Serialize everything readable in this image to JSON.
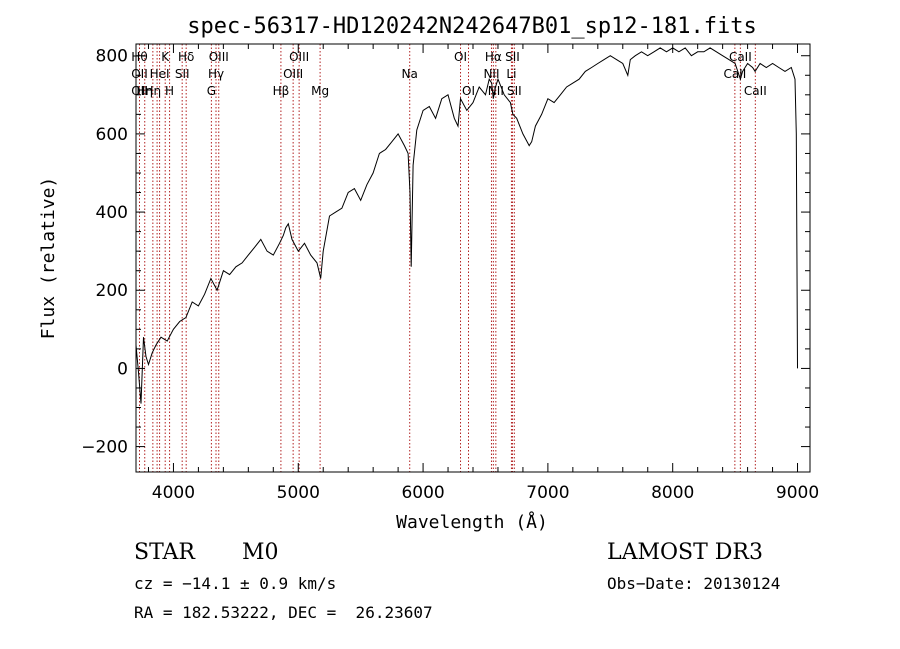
{
  "chart_data": {
    "type": "line",
    "title": "spec-56317-HD120242N242647B01_sp12-181.fits",
    "xlabel": "Wavelength (Å)",
    "ylabel": "Flux (relative)",
    "xlim": [
      3700,
      9100
    ],
    "ylim": [
      -265,
      830
    ],
    "xticks": [
      4000,
      5000,
      6000,
      7000,
      8000,
      9000
    ],
    "yticks": [
      -200,
      0,
      200,
      400,
      600,
      800
    ],
    "grid": false,
    "line_color": "#000000",
    "marker_color": "#b22222",
    "series": [
      {
        "x": [
          3700,
          3720,
          3740,
          3760,
          3780,
          3800,
          3830,
          3860,
          3900,
          3950,
          4000,
          4050,
          4100,
          4150,
          4200,
          4250,
          4300,
          4350,
          4400,
          4450,
          4500,
          4550,
          4600,
          4650,
          4700,
          4750,
          4800,
          4850,
          4880,
          4900,
          4920,
          4950,
          5000,
          5050,
          5100,
          5150,
          5180,
          5200,
          5250,
          5300,
          5350,
          5400,
          5450,
          5500,
          5550,
          5600,
          5650,
          5700,
          5750,
          5800,
          5850,
          5880,
          5895,
          5905,
          5920,
          5950,
          6000,
          6050,
          6100,
          6150,
          6200,
          6250,
          6280,
          6300,
          6350,
          6400,
          6450,
          6500,
          6530,
          6550,
          6563,
          6580,
          6600,
          6650,
          6700,
          6720,
          6750,
          6800,
          6850,
          6870,
          6900,
          6950,
          7000,
          7050,
          7100,
          7150,
          7200,
          7250,
          7300,
          7350,
          7400,
          7450,
          7500,
          7550,
          7600,
          7640,
          7660,
          7700,
          7750,
          7800,
          7850,
          7900,
          7950,
          8000,
          8050,
          8100,
          8150,
          8200,
          8250,
          8300,
          8350,
          8400,
          8450,
          8500,
          8542,
          8560,
          8600,
          8640,
          8660,
          8700,
          8750,
          8800,
          8850,
          8900,
          8950,
          8980,
          8990,
          9000
        ],
        "y": [
          60,
          -10,
          -90,
          80,
          30,
          10,
          40,
          60,
          80,
          70,
          100,
          120,
          130,
          170,
          160,
          190,
          230,
          200,
          250,
          240,
          260,
          270,
          290,
          310,
          330,
          300,
          290,
          320,
          340,
          360,
          370,
          330,
          300,
          320,
          290,
          270,
          230,
          300,
          390,
          400,
          410,
          450,
          460,
          430,
          470,
          500,
          550,
          560,
          580,
          600,
          570,
          550,
          450,
          260,
          520,
          610,
          660,
          670,
          640,
          690,
          700,
          640,
          620,
          690,
          660,
          680,
          720,
          700,
          740,
          730,
          690,
          720,
          740,
          700,
          680,
          650,
          640,
          600,
          570,
          580,
          620,
          650,
          690,
          680,
          700,
          720,
          730,
          740,
          760,
          770,
          780,
          790,
          800,
          790,
          780,
          750,
          790,
          800,
          810,
          800,
          810,
          820,
          810,
          820,
          810,
          820,
          800,
          810,
          810,
          820,
          810,
          800,
          790,
          780,
          740,
          760,
          780,
          770,
          760,
          780,
          770,
          780,
          770,
          760,
          770,
          740,
          600,
          0
        ]
      }
    ],
    "line_markers": [
      {
        "x": 3728,
        "labels": [
          "Hθ",
          "OII",
          "OII"
        ]
      },
      {
        "x": 3770,
        "labels": [
          "",
          "",
          "Hη"
        ]
      },
      {
        "x": 3835,
        "labels": [
          "",
          "",
          "Hη"
        ]
      },
      {
        "x": 3869,
        "labels": [
          "",
          "",
          ""
        ]
      },
      {
        "x": 3889,
        "labels": [
          "",
          "HeI",
          ""
        ]
      },
      {
        "x": 3934,
        "labels": [
          "K",
          "",
          ""
        ]
      },
      {
        "x": 3969,
        "labels": [
          "",
          "",
          "H"
        ]
      },
      {
        "x": 4070,
        "labels": [
          "",
          "SII",
          ""
        ]
      },
      {
        "x": 4102,
        "labels": [
          "Hδ",
          "",
          ""
        ]
      },
      {
        "x": 4304,
        "labels": [
          "",
          "",
          "G"
        ]
      },
      {
        "x": 4341,
        "labels": [
          "",
          "Hγ",
          ""
        ]
      },
      {
        "x": 4363,
        "labels": [
          "OIII",
          "",
          ""
        ]
      },
      {
        "x": 4861,
        "labels": [
          "",
          "",
          "Hβ"
        ]
      },
      {
        "x": 4959,
        "labels": [
          "",
          "OIII",
          ""
        ]
      },
      {
        "x": 5007,
        "labels": [
          "OIII",
          "",
          ""
        ]
      },
      {
        "x": 5175,
        "labels": [
          "",
          "",
          "Mg"
        ]
      },
      {
        "x": 5893,
        "labels": [
          "",
          "Na",
          ""
        ]
      },
      {
        "x": 6300,
        "labels": [
          "OI",
          "",
          ""
        ]
      },
      {
        "x": 6364,
        "labels": [
          "",
          "",
          "OI"
        ]
      },
      {
        "x": 6548,
        "labels": [
          "",
          "NII",
          ""
        ]
      },
      {
        "x": 6563,
        "labels": [
          "Hα",
          "",
          ""
        ]
      },
      {
        "x": 6583,
        "labels": [
          "",
          "",
          "NII"
        ]
      },
      {
        "x": 6708,
        "labels": [
          "",
          "Li",
          ""
        ]
      },
      {
        "x": 6716,
        "labels": [
          "SII",
          "",
          ""
        ]
      },
      {
        "x": 6731,
        "labels": [
          "",
          "",
          "SII"
        ]
      },
      {
        "x": 8498,
        "labels": [
          "",
          "CaII",
          ""
        ]
      },
      {
        "x": 8542,
        "labels": [
          "CaII",
          "",
          ""
        ]
      },
      {
        "x": 8662,
        "labels": [
          "",
          "",
          "CaII"
        ]
      }
    ]
  },
  "info": {
    "object_type": "STAR",
    "subclass": "M0",
    "survey": "LAMOST DR3",
    "redshift": "cz = −14.1 ± 0.9 km/s",
    "obs_date": "Obs−Date: 20130124",
    "coords": "RA = 182.53222, DEC =  26.23607"
  }
}
